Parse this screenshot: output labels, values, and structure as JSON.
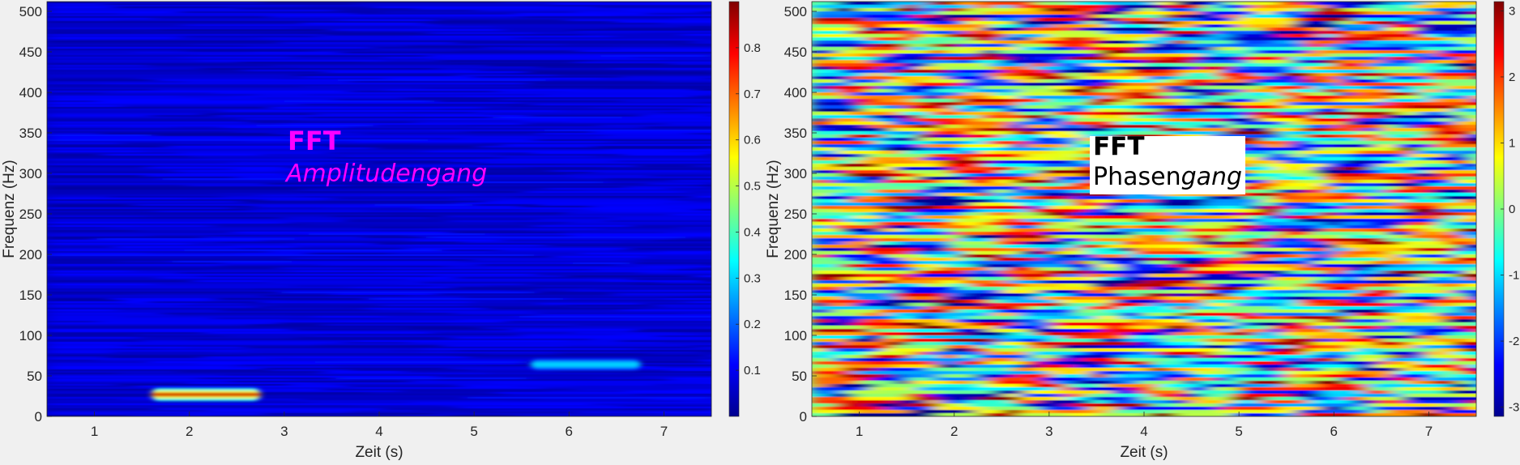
{
  "chart_data": [
    {
      "type": "heatmap",
      "title": "",
      "xlabel": "Zeit (s)",
      "ylabel": "Frequenz (Hz)",
      "xlim": [
        0.5,
        7.5
      ],
      "ylim": [
        0,
        512
      ],
      "xticks": [
        "1",
        "2",
        "3",
        "4",
        "5",
        "6",
        "7"
      ],
      "yticks": [
        "0",
        "50",
        "100",
        "150",
        "200",
        "250",
        "300",
        "350",
        "400",
        "450",
        "500"
      ],
      "colormap": "jet",
      "background_value_range": [
        0.03,
        0.12
      ],
      "features": [
        {
          "x_start": 1.6,
          "x_end": 2.75,
          "frequency": 27,
          "peak_value": 0.85
        },
        {
          "x_start": 5.6,
          "x_end": 6.75,
          "frequency": 64,
          "peak_value": 0.3
        }
      ],
      "colorbar": {
        "min": 0.0,
        "max": 0.9,
        "ticks": [
          "0.1",
          "0.2",
          "0.3",
          "0.4",
          "0.5",
          "0.6",
          "0.7",
          "0.8"
        ]
      },
      "annotation": {
        "title": "FFT",
        "subtitle": "Amplitudengang",
        "color": "#ff00ff"
      }
    },
    {
      "type": "heatmap",
      "title": "",
      "xlabel": "Zeit (s)",
      "ylabel": "Frequenz (Hz)",
      "xlim": [
        0.5,
        7.5
      ],
      "ylim": [
        0,
        512
      ],
      "xticks": [
        "1",
        "2",
        "3",
        "4",
        "5",
        "6",
        "7"
      ],
      "yticks": [
        "0",
        "50",
        "100",
        "150",
        "200",
        "250",
        "300",
        "350",
        "400",
        "450",
        "500"
      ],
      "colormap": "jet",
      "background_value_range": [
        -3.14,
        3.14
      ],
      "pattern": "random phase noise",
      "colorbar": {
        "min": -3.14,
        "max": 3.14,
        "ticks": [
          "-3",
          "-2",
          "-1",
          "0",
          "1",
          "2",
          "3"
        ]
      },
      "annotation": {
        "title": "FFT",
        "subtitle_normal": "Phasen",
        "subtitle_italic": "gang",
        "color": "#000000",
        "box": "#ffffff"
      }
    }
  ]
}
